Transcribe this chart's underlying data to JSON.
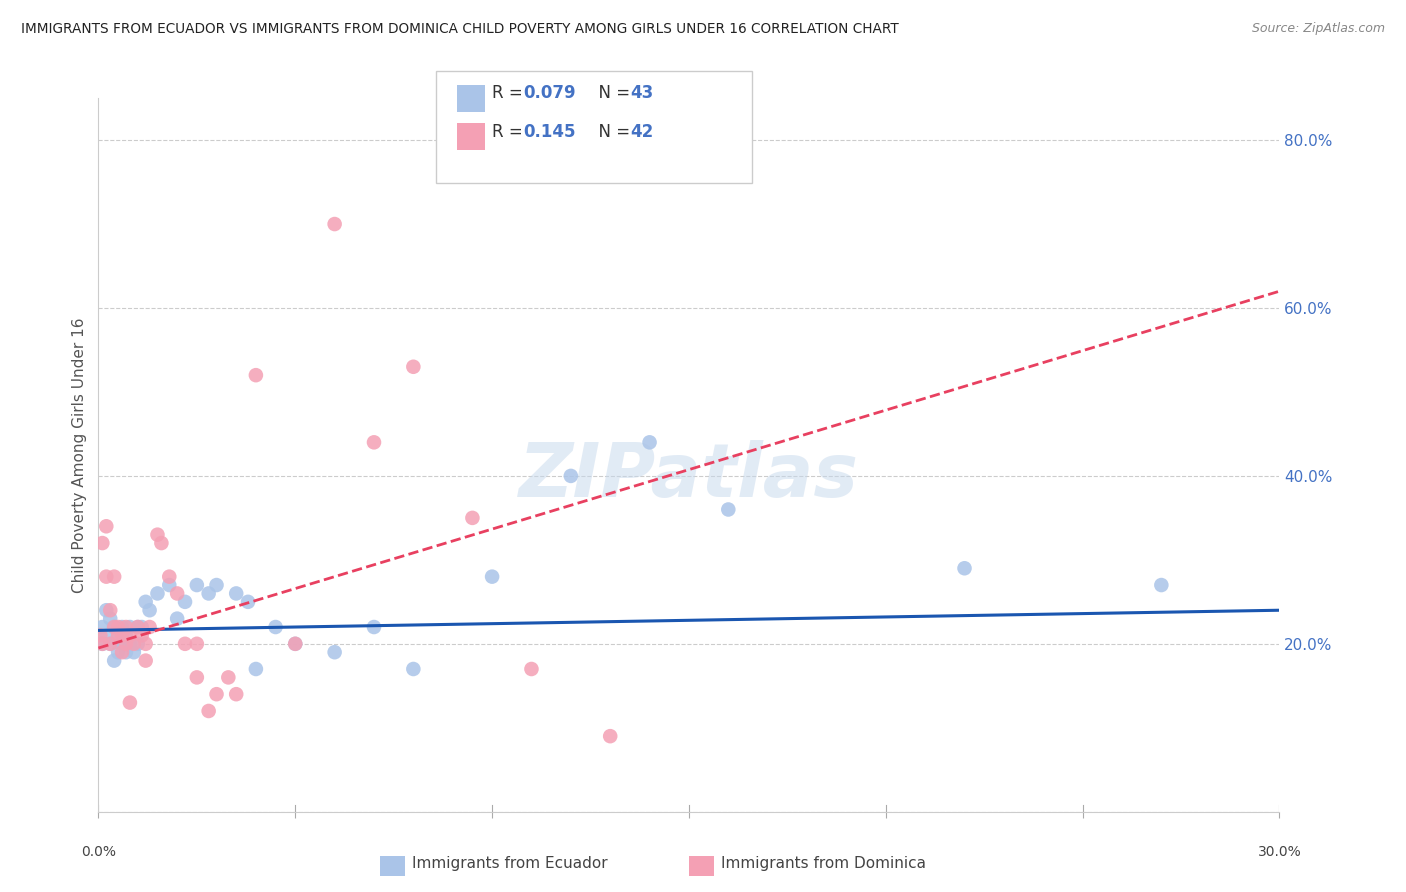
{
  "title": "IMMIGRANTS FROM ECUADOR VS IMMIGRANTS FROM DOMINICA CHILD POVERTY AMONG GIRLS UNDER 16 CORRELATION CHART",
  "source": "Source: ZipAtlas.com",
  "ylabel": "Child Poverty Among Girls Under 16",
  "xlim": [
    0.0,
    0.3
  ],
  "ylim": [
    0.0,
    0.85
  ],
  "yticks": [
    0.0,
    0.2,
    0.4,
    0.6,
    0.8
  ],
  "ytick_labels": [
    "",
    "20.0%",
    "40.0%",
    "60.0%",
    "80.0%"
  ],
  "xtick_positions": [
    0.0,
    0.05,
    0.1,
    0.15,
    0.2,
    0.25,
    0.3
  ],
  "r_ecuador": 0.079,
  "n_ecuador": 43,
  "r_dominica": 0.145,
  "n_dominica": 42,
  "color_ecuador": "#aac4e8",
  "color_dominica": "#f4a0b4",
  "color_ecuador_line": "#1a56b0",
  "color_dominica_line": "#e84060",
  "watermark": "ZIPatlas",
  "legend_label_ecuador": "Immigrants from Ecuador",
  "legend_label_dominica": "Immigrants from Dominica",
  "ecuador_x": [
    0.001,
    0.001,
    0.002,
    0.002,
    0.003,
    0.003,
    0.004,
    0.004,
    0.005,
    0.005,
    0.006,
    0.006,
    0.007,
    0.007,
    0.008,
    0.008,
    0.009,
    0.01,
    0.01,
    0.011,
    0.012,
    0.013,
    0.015,
    0.018,
    0.02,
    0.022,
    0.025,
    0.028,
    0.03,
    0.035,
    0.038,
    0.04,
    0.045,
    0.05,
    0.06,
    0.07,
    0.08,
    0.1,
    0.12,
    0.14,
    0.16,
    0.22,
    0.27
  ],
  "ecuador_y": [
    0.2,
    0.22,
    0.21,
    0.24,
    0.2,
    0.23,
    0.22,
    0.18,
    0.19,
    0.21,
    0.2,
    0.22,
    0.21,
    0.19,
    0.22,
    0.2,
    0.19,
    0.22,
    0.2,
    0.22,
    0.25,
    0.24,
    0.26,
    0.27,
    0.23,
    0.25,
    0.27,
    0.26,
    0.27,
    0.26,
    0.25,
    0.17,
    0.22,
    0.2,
    0.19,
    0.22,
    0.17,
    0.28,
    0.4,
    0.44,
    0.36,
    0.29,
    0.27
  ],
  "dominica_x": [
    0.0005,
    0.001,
    0.001,
    0.002,
    0.002,
    0.003,
    0.003,
    0.004,
    0.004,
    0.005,
    0.005,
    0.006,
    0.006,
    0.007,
    0.007,
    0.008,
    0.009,
    0.01,
    0.011,
    0.012,
    0.013,
    0.015,
    0.016,
    0.018,
    0.02,
    0.022,
    0.025,
    0.028,
    0.03,
    0.033,
    0.035,
    0.04,
    0.05,
    0.06,
    0.07,
    0.08,
    0.095,
    0.11,
    0.13,
    0.025,
    0.012,
    0.008
  ],
  "dominica_y": [
    0.21,
    0.32,
    0.2,
    0.28,
    0.34,
    0.2,
    0.24,
    0.22,
    0.28,
    0.21,
    0.22,
    0.19,
    0.21,
    0.22,
    0.2,
    0.21,
    0.2,
    0.22,
    0.21,
    0.2,
    0.22,
    0.33,
    0.32,
    0.28,
    0.26,
    0.2,
    0.16,
    0.12,
    0.14,
    0.16,
    0.14,
    0.52,
    0.2,
    0.7,
    0.44,
    0.53,
    0.35,
    0.17,
    0.09,
    0.2,
    0.18,
    0.13
  ],
  "ecuador_line_x": [
    0.0,
    0.3
  ],
  "ecuador_line_y": [
    0.216,
    0.24
  ],
  "dominica_line_x": [
    0.0,
    0.3
  ],
  "dominica_line_y": [
    0.195,
    0.62
  ]
}
